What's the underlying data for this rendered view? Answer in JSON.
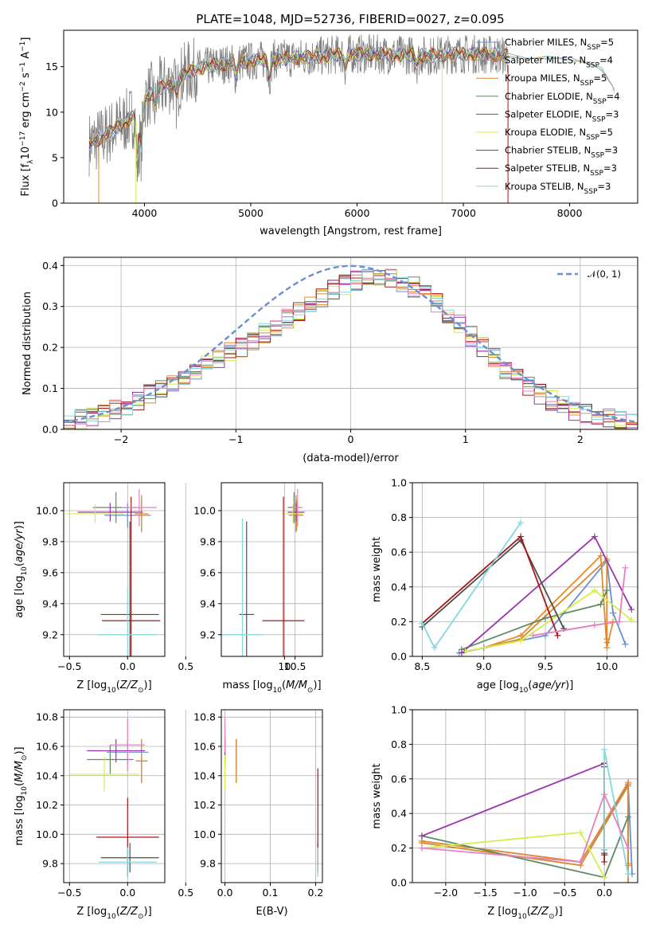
{
  "figure": {
    "title": "PLATE=1048, MJD=52736, FIBERID=0027, z=0.095",
    "colors": {
      "Chabrier MILES": "#6a8fd2",
      "Salpeter MILES": "#e58a2e",
      "Kroupa MILES": "#d6872c",
      "Chabrier ELODIE": "#5e8b5f",
      "Salpeter ELODIE": "#9a33b0",
      "Kroupa ELODIE": "#d6ee46",
      "Chabrier STELIB": "#4d4d4d",
      "Salpeter STELIB": "#a61818",
      "Kroupa STELIB": "#82d8dd",
      "data": "#808080",
      "pink": "#e67fbe",
      "normal": "#6a8fd2"
    }
  },
  "chart_data": [
    {
      "id": "spectrum",
      "type": "line",
      "xlabel": "wavelength [Angstrom, rest frame]",
      "ylabel": "Flux [f_λ10^-17 erg cm^-2 s^-1 A^-1]",
      "xlim": [
        3240,
        8640
      ],
      "ylim": [
        0,
        19
      ],
      "xticks": [
        "4000",
        "5000",
        "6000",
        "7000",
        "8000"
      ],
      "yticks": [
        "0",
        "5",
        "10",
        "15"
      ],
      "grid": false,
      "legend_position": "right",
      "legend": [
        "Chabrier MILES, N_SSP=5",
        "Salpeter MILES, N_SSP=4",
        "Kroupa MILES, N_SSP=5",
        "Chabrier ELODIE, N_SSP=4",
        "Salpeter ELODIE, N_SSP=3",
        "Kroupa ELODIE, N_SSP=5",
        "Chabrier STELIB, N_SSP=3",
        "Salpeter STELIB, N_SSP=3",
        "Kroupa STELIB, N_SSP=3"
      ],
      "continuum": {
        "x": [
          3480,
          3600,
          3700,
          3800,
          3900,
          4000,
          4100,
          4200,
          4300,
          4400,
          4500,
          4700,
          4900,
          5100,
          5300,
          5500,
          5700,
          5900,
          6100,
          6300,
          6500,
          6700,
          6900,
          7100,
          7300,
          7420
        ],
        "y": [
          6.5,
          7.2,
          8.0,
          8.8,
          9.6,
          11.5,
          12.4,
          12.9,
          13.5,
          14.3,
          14.8,
          15.2,
          15.5,
          15.7,
          15.9,
          16.0,
          16.2,
          16.4,
          16.4,
          16.3,
          16.3,
          16.2,
          16.4,
          16.4,
          16.3,
          16.2
        ]
      },
      "model_extension": {
        "x": [
          7420,
          7600,
          7800,
          8000,
          8200,
          8300,
          8400,
          8420
        ],
        "y": [
          16.2,
          16.1,
          15.9,
          15.8,
          15.5,
          14.8,
          12.7,
          12.2
        ]
      },
      "absorption_features": [
        {
          "x": 3934,
          "depth": 6
        },
        {
          "x": 3969,
          "depth": 5
        },
        {
          "x": 4102,
          "depth": 2
        },
        {
          "x": 4304,
          "depth": 2
        },
        {
          "x": 4861,
          "depth": 1.5
        },
        {
          "x": 5175,
          "depth": 2
        },
        {
          "x": 5890,
          "depth": 1.5
        },
        {
          "x": 6563,
          "depth": 1
        },
        {
          "x": 8498,
          "depth": 2
        },
        {
          "x": 8542,
          "depth": 2
        }
      ],
      "spikes": [
        {
          "x": 3920,
          "y": 0,
          "series": "Kroupa ELODIE"
        },
        {
          "x": 6800,
          "y": 0,
          "series": "Kroupa ELODIE"
        },
        {
          "x": 7420,
          "y": 0,
          "series": "Salpeter STELIB"
        },
        {
          "x": 3570,
          "y": 0,
          "series": "Salpeter MILES"
        }
      ]
    },
    {
      "id": "residual-histogram",
      "type": "area",
      "xlabel": "(data-model)/error",
      "ylabel": "Normed distribution",
      "xlim": [
        -2.5,
        2.5
      ],
      "ylim": [
        0,
        0.42
      ],
      "xticks": [
        "−2",
        "−1",
        "0",
        "1",
        "2"
      ],
      "yticks": [
        "0.0",
        "0.1",
        "0.2",
        "0.3",
        "0.4"
      ],
      "grid": true,
      "legend_position": "upper right",
      "reference": {
        "label": "N(0,1)",
        "mean": 0,
        "sigma": 1
      },
      "bin_width": 0.1
    },
    {
      "id": "age-vs-Z",
      "type": "scatter",
      "xlabel": "Z [log10(Z/Z_sun)]",
      "ylabel": "age  [log10(age/yr)]",
      "xlim": [
        -0.55,
        0.32
      ],
      "ylim": [
        9.06,
        10.18
      ],
      "xticks": [
        "−0.5",
        "0.0",
        "0.5"
      ],
      "yticks": [
        "9.2",
        "9.4",
        "9.6",
        "9.8",
        "10.0"
      ],
      "grid": true,
      "points": [
        {
          "series": "Chabrier MILES",
          "x": 0.0,
          "y": 9.97,
          "xerr": 0.2,
          "yerr": 0.08
        },
        {
          "series": "Salpeter MILES",
          "x": 0.12,
          "y": 9.97,
          "xerr": 0.05,
          "yerr": 0.1
        },
        {
          "series": "Kroupa MILES",
          "x": 0.12,
          "y": 9.98,
          "xerr": 0.06,
          "yerr": 0.12
        },
        {
          "series": "Chabrier ELODIE",
          "x": -0.1,
          "y": 10.02,
          "xerr": 0.2,
          "yerr": 0.1
        },
        {
          "series": "Salpeter ELODIE",
          "x": -0.15,
          "y": 9.99,
          "xerr": 0.28,
          "yerr": 0.06
        },
        {
          "series": "Kroupa ELODIE",
          "x": -0.28,
          "y": 9.98,
          "xerr": 0.25,
          "yerr": 0.06
        },
        {
          "series": "Chabrier STELIB",
          "x": 0.02,
          "y": 9.33,
          "xerr": 0.25,
          "yerr": 0.6
        },
        {
          "series": "Salpeter STELIB",
          "x": 0.03,
          "y": 9.29,
          "xerr": 0.25,
          "yerr": 0.8
        },
        {
          "series": "Kroupa STELIB",
          "x": 0.0,
          "y": 9.2,
          "xerr": 0.25,
          "yerr": 0.3
        },
        {
          "series": "pink",
          "x": 0.1,
          "y": 10.02,
          "xerr": 0.15,
          "yerr": 0.12
        }
      ]
    },
    {
      "id": "age-vs-mass",
      "type": "scatter",
      "xlabel": "mass [log10(M/M_sun)]",
      "ylabel": "",
      "xlim": [
        7.0,
        11.8
      ],
      "ylim": [
        9.06,
        10.18
      ],
      "xticks": [
        "10",
        "10.5"
      ],
      "yticks": [
        "9.2",
        "9.4",
        "9.6",
        "9.8",
        "10.0"
      ],
      "grid": true,
      "points": [
        {
          "series": "Chabrier MILES",
          "x": 10.55,
          "y": 9.97,
          "xerr": 0.35,
          "yerr": 0.08
        },
        {
          "series": "Salpeter MILES",
          "x": 10.58,
          "y": 9.97,
          "xerr": 0.3,
          "yerr": 0.1
        },
        {
          "series": "Kroupa MILES",
          "x": 10.55,
          "y": 9.98,
          "xerr": 0.3,
          "yerr": 0.12
        },
        {
          "series": "Chabrier ELODIE",
          "x": 10.45,
          "y": 10.02,
          "xerr": 0.3,
          "yerr": 0.1
        },
        {
          "series": "Salpeter ELODIE",
          "x": 10.55,
          "y": 9.99,
          "xerr": 0.4,
          "yerr": 0.06
        },
        {
          "series": "Kroupa ELODIE",
          "x": 10.4,
          "y": 9.98,
          "xerr": 0.5,
          "yerr": 0.06
        },
        {
          "series": "Chabrier STELIB",
          "x": 8.2,
          "y": 9.33,
          "xerr": 0.35,
          "yerr": 0.6
        },
        {
          "series": "Salpeter STELIB",
          "x": 9.95,
          "y": 9.29,
          "xerr": 1.0,
          "yerr": 0.8
        },
        {
          "series": "Kroupa STELIB",
          "x": 8.0,
          "y": 9.2,
          "xerr": 1.0,
          "yerr": 0.75
        },
        {
          "series": "pink",
          "x": 10.62,
          "y": 10.02,
          "xerr": 0.25,
          "yerr": 0.12
        }
      ]
    },
    {
      "id": "mass-weight-vs-age",
      "type": "line",
      "xlabel": "age  [log10(age/yr)]",
      "ylabel": "mass weight",
      "xlim": [
        8.42,
        10.25
      ],
      "ylim": [
        0,
        1.0
      ],
      "xticks": [
        "8.5",
        "9.0",
        "9.5",
        "10.0"
      ],
      "yticks": [
        "0.0",
        "0.2",
        "0.4",
        "0.6",
        "0.8",
        "1.0"
      ],
      "grid": true,
      "series": [
        {
          "name": "Chabrier MILES",
          "x": [
            8.8,
            9.5,
            10.0,
            10.05,
            10.15
          ],
          "y": [
            0.02,
            0.12,
            0.55,
            0.25,
            0.07
          ]
        },
        {
          "name": "Salpeter MILES",
          "x": [
            9.0,
            9.3,
            9.95,
            10.0,
            10.05
          ],
          "y": [
            0.05,
            0.12,
            0.58,
            0.05,
            0.2
          ]
        },
        {
          "name": "Kroupa MILES",
          "x": [
            9.0,
            9.3,
            10.0,
            10.0,
            10.0
          ],
          "y": [
            0.05,
            0.1,
            0.56,
            0.08,
            0.1
          ]
        },
        {
          "name": "Chabrier ELODIE",
          "x": [
            8.82,
            9.5,
            9.95,
            10.0
          ],
          "y": [
            0.04,
            0.22,
            0.3,
            0.38
          ]
        },
        {
          "name": "Salpeter ELODIE",
          "x": [
            8.82,
            9.9,
            10.2
          ],
          "y": [
            0.02,
            0.69,
            0.27
          ]
        },
        {
          "name": "Kroupa ELODIE",
          "x": [
            8.85,
            9.3,
            9.9,
            10.2
          ],
          "y": [
            0.03,
            0.09,
            0.38,
            0.21
          ]
        },
        {
          "name": "Chabrier STELIB",
          "x": [
            8.5,
            9.3,
            9.65
          ],
          "y": [
            0.17,
            0.67,
            0.16
          ]
        },
        {
          "name": "Salpeter STELIB",
          "x": [
            8.5,
            9.3,
            9.6
          ],
          "y": [
            0.19,
            0.69,
            0.12
          ]
        },
        {
          "name": "Kroupa STELIB",
          "x": [
            8.5,
            8.6,
            9.3
          ],
          "y": [
            0.19,
            0.05,
            0.77
          ]
        },
        {
          "name": "pink",
          "x": [
            9.4,
            9.9,
            10.1,
            10.15
          ],
          "y": [
            0.12,
            0.18,
            0.2,
            0.51
          ]
        }
      ]
    },
    {
      "id": "mass-vs-Z",
      "type": "scatter",
      "xlabel": "Z [log10(Z/Z_sun)]",
      "ylabel": "mass [log10(M/M_sun)]",
      "xlim": [
        -0.55,
        0.32
      ],
      "ylim": [
        9.67,
        10.85
      ],
      "xticks": [
        "−0.5",
        "0.0",
        "0.5"
      ],
      "yticks": [
        "9.8",
        "10.0",
        "10.2",
        "10.4",
        "10.6",
        "10.8"
      ],
      "grid": true,
      "points": [
        {
          "series": "Chabrier MILES",
          "x": 0.0,
          "y": 10.56,
          "xerr": 0.18,
          "yerr": 0.08
        },
        {
          "series": "Salpeter MILES",
          "x": 0.12,
          "y": 10.5,
          "xerr": 0.05,
          "yerr": 0.15
        },
        {
          "series": "Kroupa MILES",
          "x": 0.12,
          "y": 10.5,
          "xerr": 0.05,
          "yerr": 0.15
        },
        {
          "series": "Chabrier ELODIE",
          "x": -0.15,
          "y": 10.51,
          "xerr": 0.2,
          "yerr": 0.1
        },
        {
          "series": "Salpeter ELODIE",
          "x": -0.1,
          "y": 10.57,
          "xerr": 0.25,
          "yerr": 0.08
        },
        {
          "series": "Kroupa ELODIE",
          "x": -0.2,
          "y": 10.41,
          "xerr": 0.3,
          "yerr": 0.12
        },
        {
          "series": "Chabrier STELIB",
          "x": 0.02,
          "y": 9.84,
          "xerr": 0.25,
          "yerr": 0.1
        },
        {
          "series": "Salpeter STELIB",
          "x": 0.0,
          "y": 9.98,
          "xerr": 0.27,
          "yerr": 0.27
        },
        {
          "series": "Kroupa STELIB",
          "x": 0.0,
          "y": 9.81,
          "xerr": 0.25,
          "yerr": 0.1
        },
        {
          "series": "pink",
          "x": 0.0,
          "y": 10.61,
          "xerr": 0.15,
          "yerr": 0.18
        }
      ]
    },
    {
      "id": "mass-vs-EBV",
      "type": "scatter",
      "xlabel": "E(B-V)",
      "ylabel": "",
      "xlim": [
        -0.008,
        0.215
      ],
      "ylim": [
        9.67,
        10.85
      ],
      "xticks": [
        "0.0",
        "0.1",
        "0.2"
      ],
      "yticks": [
        "9.8",
        "10.0",
        "10.2",
        "10.4",
        "10.6",
        "10.8"
      ],
      "grid": true,
      "points": [
        {
          "series": "Chabrier MILES",
          "x": 0.025,
          "y": 10.55,
          "xerr": 0,
          "yerr": 0.1
        },
        {
          "series": "Salpeter MILES",
          "x": 0.025,
          "y": 10.5,
          "xerr": 0,
          "yerr": 0.15
        },
        {
          "series": "Kroupa MILES",
          "x": 0.025,
          "y": 10.5,
          "xerr": 0,
          "yerr": 0.15
        },
        {
          "series": "Chabrier ELODIE",
          "x": 0.0,
          "y": 10.55,
          "xerr": 0,
          "yerr": 0.1
        },
        {
          "series": "Salpeter ELODIE",
          "x": 0.0,
          "y": 10.57,
          "xerr": 0,
          "yerr": 0.1
        },
        {
          "series": "Kroupa ELODIE",
          "x": 0.0,
          "y": 10.42,
          "xerr": 0,
          "yerr": 0.12
        },
        {
          "series": "Chabrier STELIB",
          "x": 0.205,
          "y": 9.84,
          "xerr": 0,
          "yerr": 0.1
        },
        {
          "series": "Salpeter STELIB",
          "x": 0.205,
          "y": 10.1,
          "xerr": 0,
          "yerr": 0.35
        },
        {
          "series": "Kroupa STELIB",
          "x": 0.205,
          "y": 9.81,
          "xerr": 0,
          "yerr": 0.1
        },
        {
          "series": "pink",
          "x": 0.0,
          "y": 10.68,
          "xerr": 0,
          "yerr": 0.12
        }
      ]
    },
    {
      "id": "mass-weight-vs-Z",
      "type": "line",
      "xlabel": "Z [log10(Z/Z_sun)]",
      "ylabel": "mass weight",
      "xlim": [
        -2.42,
        0.42
      ],
      "ylim": [
        0,
        1.0
      ],
      "xticks": [
        "−2.0",
        "−1.5",
        "−1.0",
        "−0.5",
        "0.0"
      ],
      "yticks": [
        "0.0",
        "0.2",
        "0.4",
        "0.6",
        "0.8",
        "1.0"
      ],
      "grid": true,
      "series": [
        {
          "name": "Chabrier MILES",
          "x": [
            -2.3,
            -0.3,
            0.3,
            0.35
          ],
          "y": [
            0.24,
            0.12,
            0.57,
            0.05
          ]
        },
        {
          "name": "Salpeter MILES",
          "x": [
            -2.3,
            -0.3,
            0.3,
            0.3
          ],
          "y": [
            0.24,
            0.12,
            0.58,
            0.11
          ]
        },
        {
          "name": "Kroupa MILES",
          "x": [
            -2.3,
            -0.3,
            0.3,
            0.3,
            0.3
          ],
          "y": [
            0.23,
            0.1,
            0.56,
            0.1,
            0.0
          ]
        },
        {
          "name": "Chabrier ELODIE",
          "x": [
            -2.3,
            0.0,
            0.3
          ],
          "y": [
            0.27,
            0.03,
            0.38
          ]
        },
        {
          "name": "Salpeter ELODIE",
          "x": [
            -2.3,
            0.0
          ],
          "y": [
            0.27,
            0.69
          ]
        },
        {
          "name": "Kroupa ELODIE",
          "x": [
            -2.3,
            -0.3,
            0.0
          ],
          "y": [
            0.2,
            0.29,
            0.03
          ]
        },
        {
          "name": "Chabrier STELIB",
          "x": [
            0.0,
            0.0,
            0.0
          ],
          "y": [
            0.17,
            0.67,
            0.16
          ]
        },
        {
          "name": "Salpeter STELIB",
          "x": [
            0.0,
            0.0,
            0.0
          ],
          "y": [
            0.19,
            0.69,
            0.12
          ]
        },
        {
          "name": "Kroupa STELIB",
          "x": [
            0.0,
            0.0,
            0.3
          ],
          "y": [
            0.19,
            0.77,
            0.05
          ]
        },
        {
          "name": "pink",
          "x": [
            -2.3,
            -0.3,
            0.0,
            0.3
          ],
          "y": [
            0.2,
            0.12,
            0.51,
            0.2
          ]
        }
      ]
    }
  ]
}
